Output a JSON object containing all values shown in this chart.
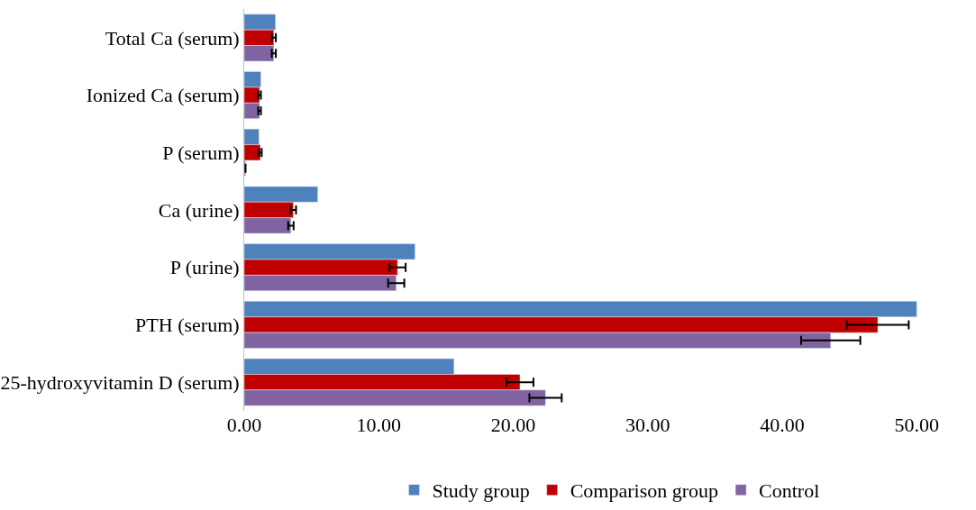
{
  "chart_data": {
    "type": "bar",
    "orientation": "horizontal",
    "categories": [
      "Total Ca (serum)",
      "Ionized Ca (serum)",
      "P (serum)",
      "Ca (urine)",
      "P (urine)",
      "PTH (serum)",
      "25-hydroxyvitamin D (serum)"
    ],
    "series": [
      {
        "name": "Study group",
        "color": "#4f81bd",
        "values": [
          2.33,
          1.24,
          1.1,
          5.47,
          12.7,
          50.0,
          15.6
        ]
      },
      {
        "name": "Comparison group",
        "color": "#c00000",
        "values": [
          2.2,
          1.14,
          1.2,
          3.65,
          11.4,
          47.1,
          20.5
        ],
        "errors": [
          0.15,
          0.1,
          0.1,
          0.2,
          0.6,
          2.3,
          1.0
        ]
      },
      {
        "name": "Control",
        "color": "#8064a2",
        "values": [
          2.2,
          1.14,
          0.1,
          3.47,
          11.3,
          43.6,
          22.4
        ],
        "errors": [
          0.15,
          0.1,
          null,
          0.2,
          0.6,
          2.2,
          1.2
        ]
      }
    ],
    "xlim": [
      0,
      54.4
    ],
    "xticks": [
      {
        "value": 0,
        "label": "0.00"
      },
      {
        "value": 10,
        "label": "10.00"
      },
      {
        "value": 20,
        "label": "20.00"
      },
      {
        "value": 30,
        "label": "30.00"
      },
      {
        "value": 40,
        "label": "40.00"
      },
      {
        "value": 50,
        "label": "50.00"
      }
    ],
    "legend": "bottom"
  }
}
